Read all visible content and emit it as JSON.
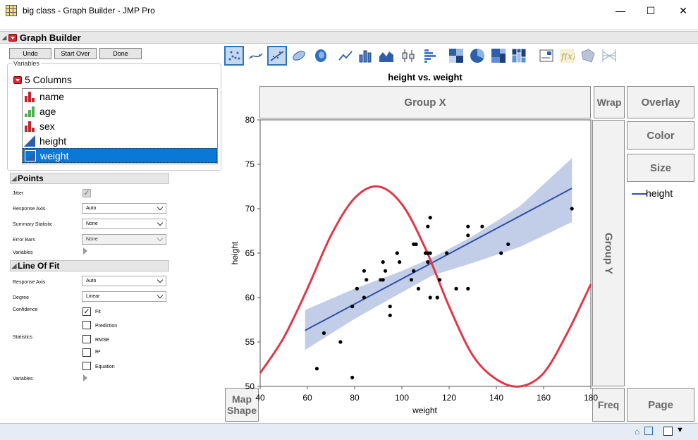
{
  "window": {
    "title": "big class - Graph Builder - JMP Pro"
  },
  "panel": {
    "title": "Graph Builder"
  },
  "buttons": {
    "undo": "Undo",
    "start_over": "Start Over",
    "done": "Done"
  },
  "variables": {
    "group_label": "Variables",
    "count_label": "5 Columns",
    "columns": [
      {
        "name": "name",
        "type": "nominal"
      },
      {
        "name": "age",
        "type": "ordinal"
      },
      {
        "name": "sex",
        "type": "nominal"
      },
      {
        "name": "height",
        "type": "continuous"
      },
      {
        "name": "weight",
        "type": "continuous",
        "selected": true
      }
    ]
  },
  "points_section": {
    "title": "Points",
    "jitter_label": "Jitter",
    "response_axis_label": "Response Axis",
    "response_axis_value": "Auto",
    "summary_stat_label": "Summary Statistic",
    "summary_stat_value": "None",
    "error_bars_label": "Error Bars",
    "error_bars_value": "None",
    "variables_label": "Variables"
  },
  "line_fit_section": {
    "title": "Line Of Fit",
    "response_axis_label": "Response Axis",
    "response_axis_value": "Auto",
    "degree_label": "Degree",
    "degree_value": "Linear",
    "confidence_label": "Confidence",
    "fit_label": "Fit",
    "prediction_label": "Prediction",
    "statistics_label": "Statistics",
    "rmse_label": "RMSE",
    "r2_label": "R²",
    "equation_label": "Equation",
    "variables_label": "Variables"
  },
  "zones": {
    "group_x": "Group X",
    "wrap": "Wrap",
    "overlay": "Overlay",
    "color": "Color",
    "size": "Size",
    "group_y": "Group Y",
    "map_shape_1": "Map",
    "map_shape_2": "Shape",
    "freq": "Freq",
    "page": "Page"
  },
  "legend": {
    "label": "height",
    "color": "#2f4fa8"
  },
  "chart_data": {
    "type": "scatter",
    "title": "height vs. weight",
    "xlabel": "weight",
    "ylabel": "height",
    "xlim": [
      40,
      180
    ],
    "ylim": [
      50,
      80
    ],
    "xticks": [
      40,
      60,
      80,
      100,
      120,
      140,
      160,
      180
    ],
    "yticks": [
      50,
      55,
      60,
      65,
      70,
      75,
      80
    ],
    "points": [
      [
        64,
        52
      ],
      [
        67,
        56
      ],
      [
        74,
        55
      ],
      [
        79,
        51
      ],
      [
        79,
        59
      ],
      [
        81,
        61
      ],
      [
        84,
        60
      ],
      [
        84,
        63
      ],
      [
        85,
        62
      ],
      [
        91,
        62
      ],
      [
        92,
        62
      ],
      [
        92,
        64
      ],
      [
        93,
        63
      ],
      [
        95,
        58
      ],
      [
        95,
        59
      ],
      [
        98,
        65
      ],
      [
        99,
        64
      ],
      [
        104,
        62
      ],
      [
        105,
        63
      ],
      [
        105,
        66
      ],
      [
        106,
        66
      ],
      [
        107,
        61
      ],
      [
        110,
        65
      ],
      [
        111,
        65
      ],
      [
        111,
        68
      ],
      [
        111,
        64
      ],
      [
        112,
        69
      ],
      [
        112,
        60
      ],
      [
        112,
        65
      ],
      [
        115,
        60
      ],
      [
        116,
        62
      ],
      [
        119,
        65
      ],
      [
        123,
        61
      ],
      [
        128,
        68
      ],
      [
        128,
        67
      ],
      [
        128,
        61
      ],
      [
        134,
        68
      ],
      [
        142,
        65
      ],
      [
        145,
        66
      ],
      [
        172,
        70
      ]
    ],
    "fit_line": {
      "x": [
        59,
        172
      ],
      "y": [
        56.3,
        72.3
      ],
      "color": "#2f4fa8"
    },
    "confidence_band": {
      "x": [
        59,
        80,
        100,
        113,
        130,
        150,
        172
      ],
      "lower": [
        54.1,
        57.6,
        60.6,
        62.5,
        63.9,
        65.7,
        68.5
      ],
      "upper": [
        58.6,
        61.0,
        63.0,
        64.5,
        66.9,
        70.3,
        75.7
      ],
      "color": "#b7c6e3"
    },
    "red_curve": {
      "color": "#e03848",
      "points": [
        [
          40,
          51.5
        ],
        [
          50,
          55.5
        ],
        [
          60,
          61
        ],
        [
          70,
          67
        ],
        [
          80,
          71.2
        ],
        [
          90,
          72.5
        ],
        [
          100,
          70.5
        ],
        [
          110,
          65.5
        ],
        [
          120,
          59
        ],
        [
          130,
          53.5
        ],
        [
          140,
          50.8
        ],
        [
          150,
          50
        ],
        [
          160,
          51.5
        ],
        [
          170,
          56
        ],
        [
          180,
          61.5
        ]
      ]
    },
    "point_color": "#000000",
    "grid": false
  }
}
